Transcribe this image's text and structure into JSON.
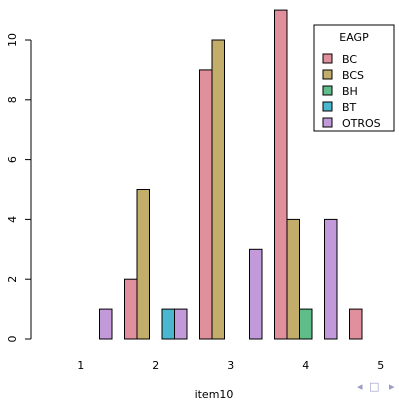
{
  "chart_data": {
    "type": "bar",
    "xlabel": "item10",
    "ylabel": "",
    "categories": [
      "1",
      "2",
      "3",
      "4",
      "5"
    ],
    "ylim": [
      0,
      11
    ],
    "yticks": [
      0,
      2,
      4,
      6,
      8,
      10
    ],
    "legend": {
      "title": "EAGP",
      "position": "top-right"
    },
    "grid": false,
    "series": [
      {
        "name": "BC",
        "color": "#e0909c",
        "values": [
          0,
          2,
          9,
          11,
          1
        ]
      },
      {
        "name": "BCS",
        "color": "#c2ad6a",
        "values": [
          0,
          5,
          10,
          4,
          0
        ]
      },
      {
        "name": "BH",
        "color": "#5fbd8a",
        "values": [
          0,
          0,
          0,
          1,
          0
        ]
      },
      {
        "name": "BT",
        "color": "#4ab7cf",
        "values": [
          0,
          1,
          0,
          0,
          0
        ]
      },
      {
        "name": "OTROS",
        "color": "#c29ad9",
        "values": [
          1,
          1,
          3,
          4,
          0
        ]
      }
    ]
  },
  "nav": {
    "prev_icon": "◂",
    "frame_icon": "□",
    "next_icon": "▸",
    "color": "#9b9bc8"
  }
}
